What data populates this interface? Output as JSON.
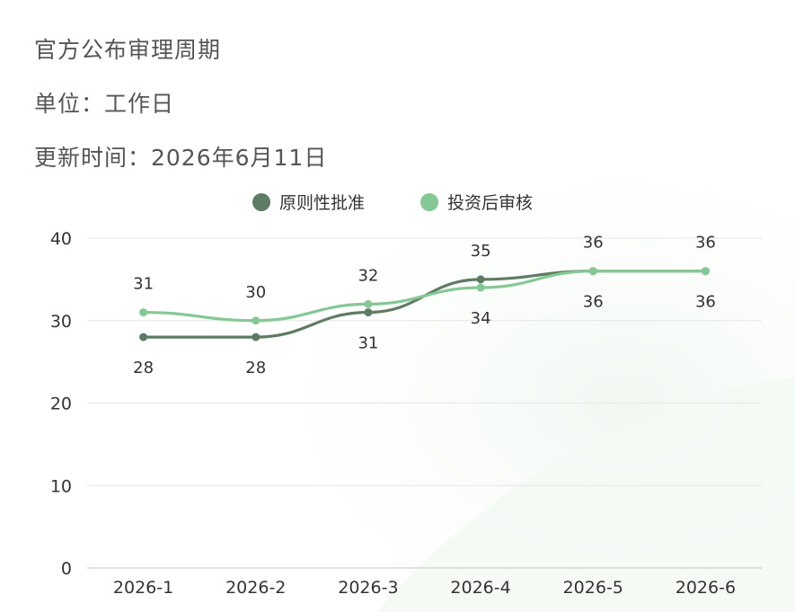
{
  "header": {
    "title": "官方公布审理周期",
    "unit": "单位：工作日",
    "updated": "更新时间：2026年6月11日"
  },
  "colors": {
    "series_dark": "#5e7b63",
    "series_light": "#85c795",
    "grid": "#e6e6e6",
    "axis": "#cfcfcf"
  },
  "chart_data": {
    "type": "line",
    "categories": [
      "2026-1",
      "2026-2",
      "2026-3",
      "2026-4",
      "2026-5",
      "2026-6"
    ],
    "series": [
      {
        "name": "原则性批准",
        "values": [
          28,
          28,
          31,
          35,
          36,
          36
        ]
      },
      {
        "name": "投资后审核",
        "values": [
          31,
          30,
          32,
          34,
          36,
          36
        ]
      }
    ],
    "ylim": [
      0,
      40
    ],
    "yticks": [
      0,
      10,
      20,
      30,
      40
    ],
    "smooth": true,
    "legend_position": "top-center",
    "grid": true
  }
}
